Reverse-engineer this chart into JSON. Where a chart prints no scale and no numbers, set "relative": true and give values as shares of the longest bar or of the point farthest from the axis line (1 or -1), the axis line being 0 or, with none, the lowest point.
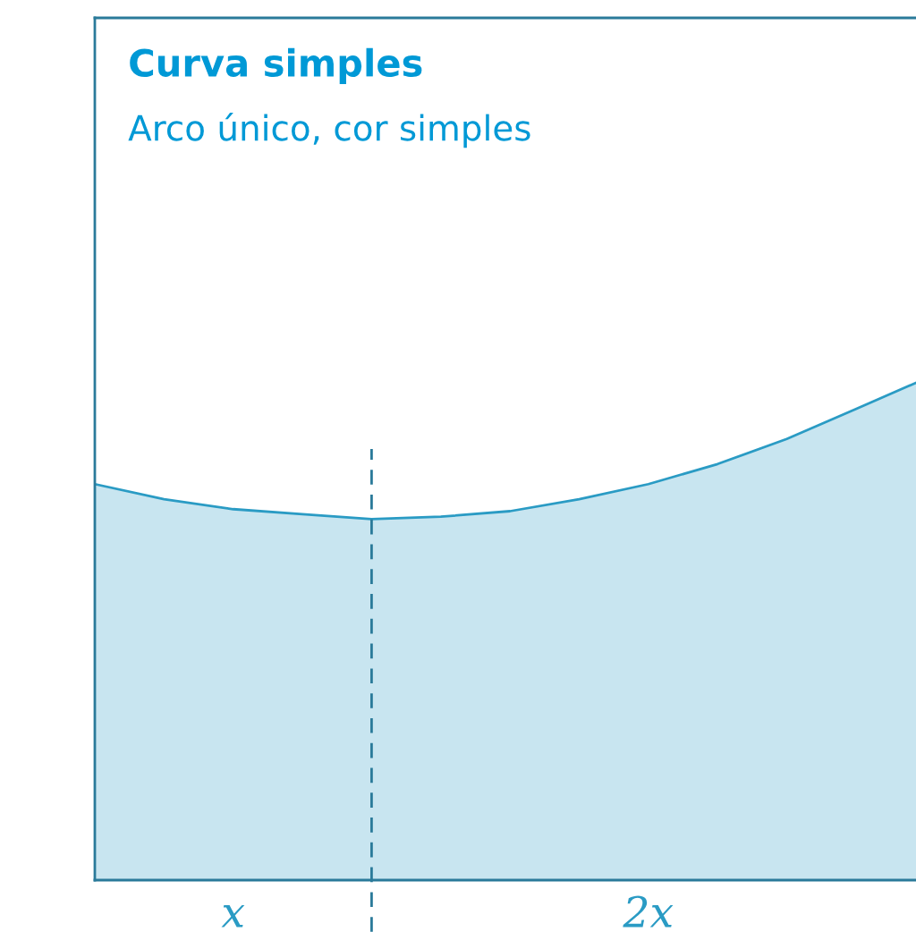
{
  "chart_data": {
    "type": "area",
    "title": "Curva simples",
    "subtitle": "Arco único, cor simples",
    "relative": true,
    "categories": [
      null,
      null,
      "x",
      null,
      null,
      null,
      null,
      null,
      "2x",
      null,
      null,
      null,
      null
    ],
    "series": [
      {
        "color": "#2a9bc4",
        "values": [
          0.79,
          0.76,
          0.74,
          0.73,
          0.72,
          0.725,
          0.736,
          0.76,
          0.79,
          0.83,
          0.88,
          0.94,
          1
        ]
      }
    ],
    "tick_labels": "x",
    "grid": false,
    "legend": false
  }
}
